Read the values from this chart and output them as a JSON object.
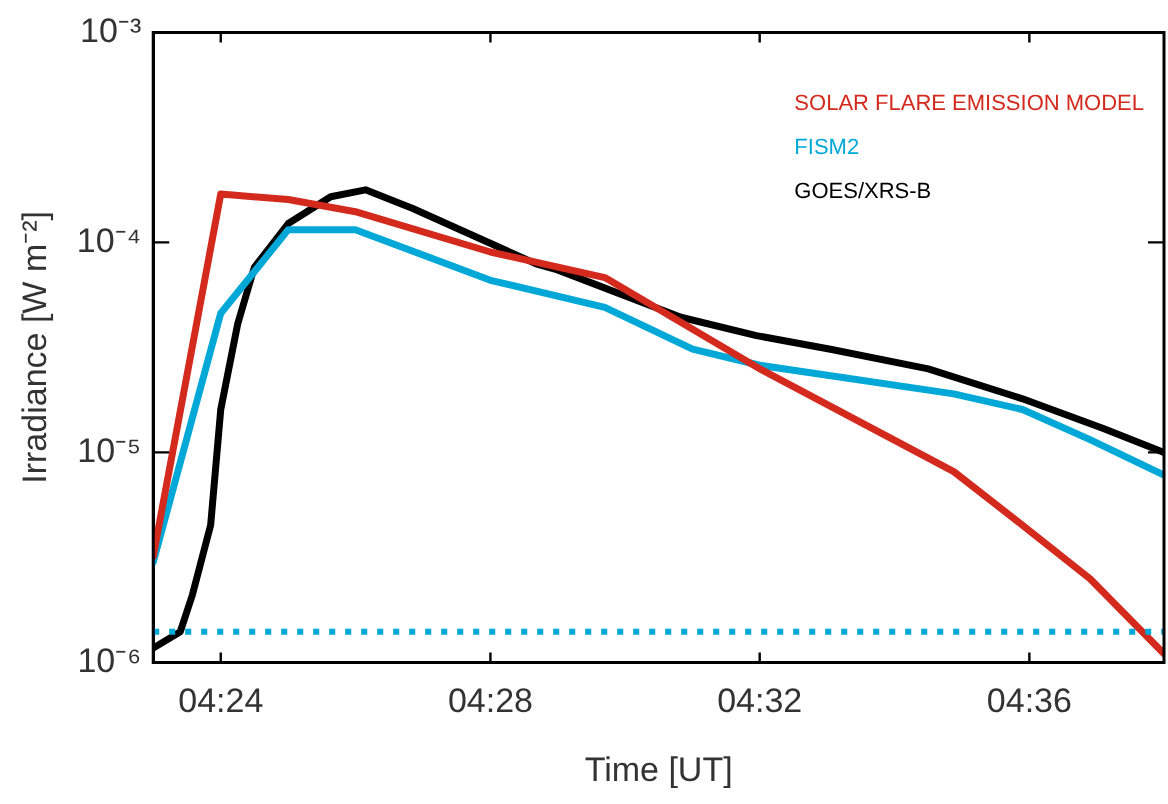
{
  "chart_data": {
    "type": "line",
    "xlabel": "Time [UT]",
    "ylabel": "Irradiance [W m⁻²]",
    "log": "y",
    "grid": false,
    "legend": "top right",
    "marker": "none",
    "line_style": "solid",
    "xlim": [
      4.3833,
      4.6333
    ],
    "xticks": [
      {
        "value": 4.4,
        "label": "04:24"
      },
      {
        "value": 4.4667,
        "label": "04:28"
      },
      {
        "value": 4.5333,
        "label": "04:32"
      },
      {
        "value": 4.6,
        "label": "04:36"
      }
    ],
    "ylim": [
      1e-06,
      0.001
    ],
    "yticks": [
      {
        "value": 1e-06,
        "label": "10⁻⁶"
      },
      {
        "value": 1e-05,
        "label": "10⁻⁵"
      },
      {
        "value": 0.0001,
        "label": "10⁻⁴"
      },
      {
        "value": 0.001,
        "label": "10⁻³"
      }
    ],
    "series": [
      {
        "name": "SOLAR FLARE EMISSION MODEL",
        "color": "#d42a1e",
        "x": [
          4.3833,
          4.4,
          4.4167,
          4.4333,
          4.4667,
          4.495,
          4.5333,
          4.5813,
          4.5983,
          4.615,
          4.6333
        ],
        "values": [
          3.2e-06,
          0.00017,
          0.00016,
          0.00014,
          9e-05,
          6.8e-05,
          2.5e-05,
          8.1e-06,
          4.5e-06,
          2.5e-06,
          1.1e-06
        ]
      },
      {
        "name": "FISM2",
        "color": "#00a8d8",
        "x": [
          4.3833,
          4.4,
          4.4167,
          4.4333,
          4.4667,
          4.495,
          4.5167,
          4.5333,
          4.5813,
          4.5983,
          4.615,
          4.6333
        ],
        "values": [
          3e-06,
          4.6e-05,
          0.000115,
          0.000115,
          6.6e-05,
          4.9e-05,
          3.1e-05,
          2.6e-05,
          1.9e-05,
          1.6e-05,
          1.15e-05,
          7.8e-06
        ]
      },
      {
        "name": "GOES/XRS-B",
        "color": "#000000",
        "x": [
          4.3833,
          4.39,
          4.393,
          4.3975,
          4.4,
          4.4042,
          4.4083,
          4.4167,
          4.4272,
          4.4358,
          4.4475,
          4.478,
          4.4833,
          4.5138,
          4.5325,
          4.5508,
          4.575,
          4.5983,
          4.6183,
          4.6333
        ],
        "values": [
          1.17e-06,
          1.4e-06,
          2.1e-06,
          4.5e-06,
          1.6e-05,
          4.1e-05,
          7.6e-05,
          0.000123,
          0.000165,
          0.000178,
          0.000145,
          7.9e-05,
          7.4e-05,
          4.4e-05,
          3.6e-05,
          3.1e-05,
          2.5e-05,
          1.8e-05,
          1.3e-05,
          1e-05
        ]
      }
    ],
    "ref_lines": [
      {
        "axis": "y",
        "value": 1.4e-06,
        "color": "#00a8d8",
        "line_style": "dotted"
      }
    ]
  }
}
